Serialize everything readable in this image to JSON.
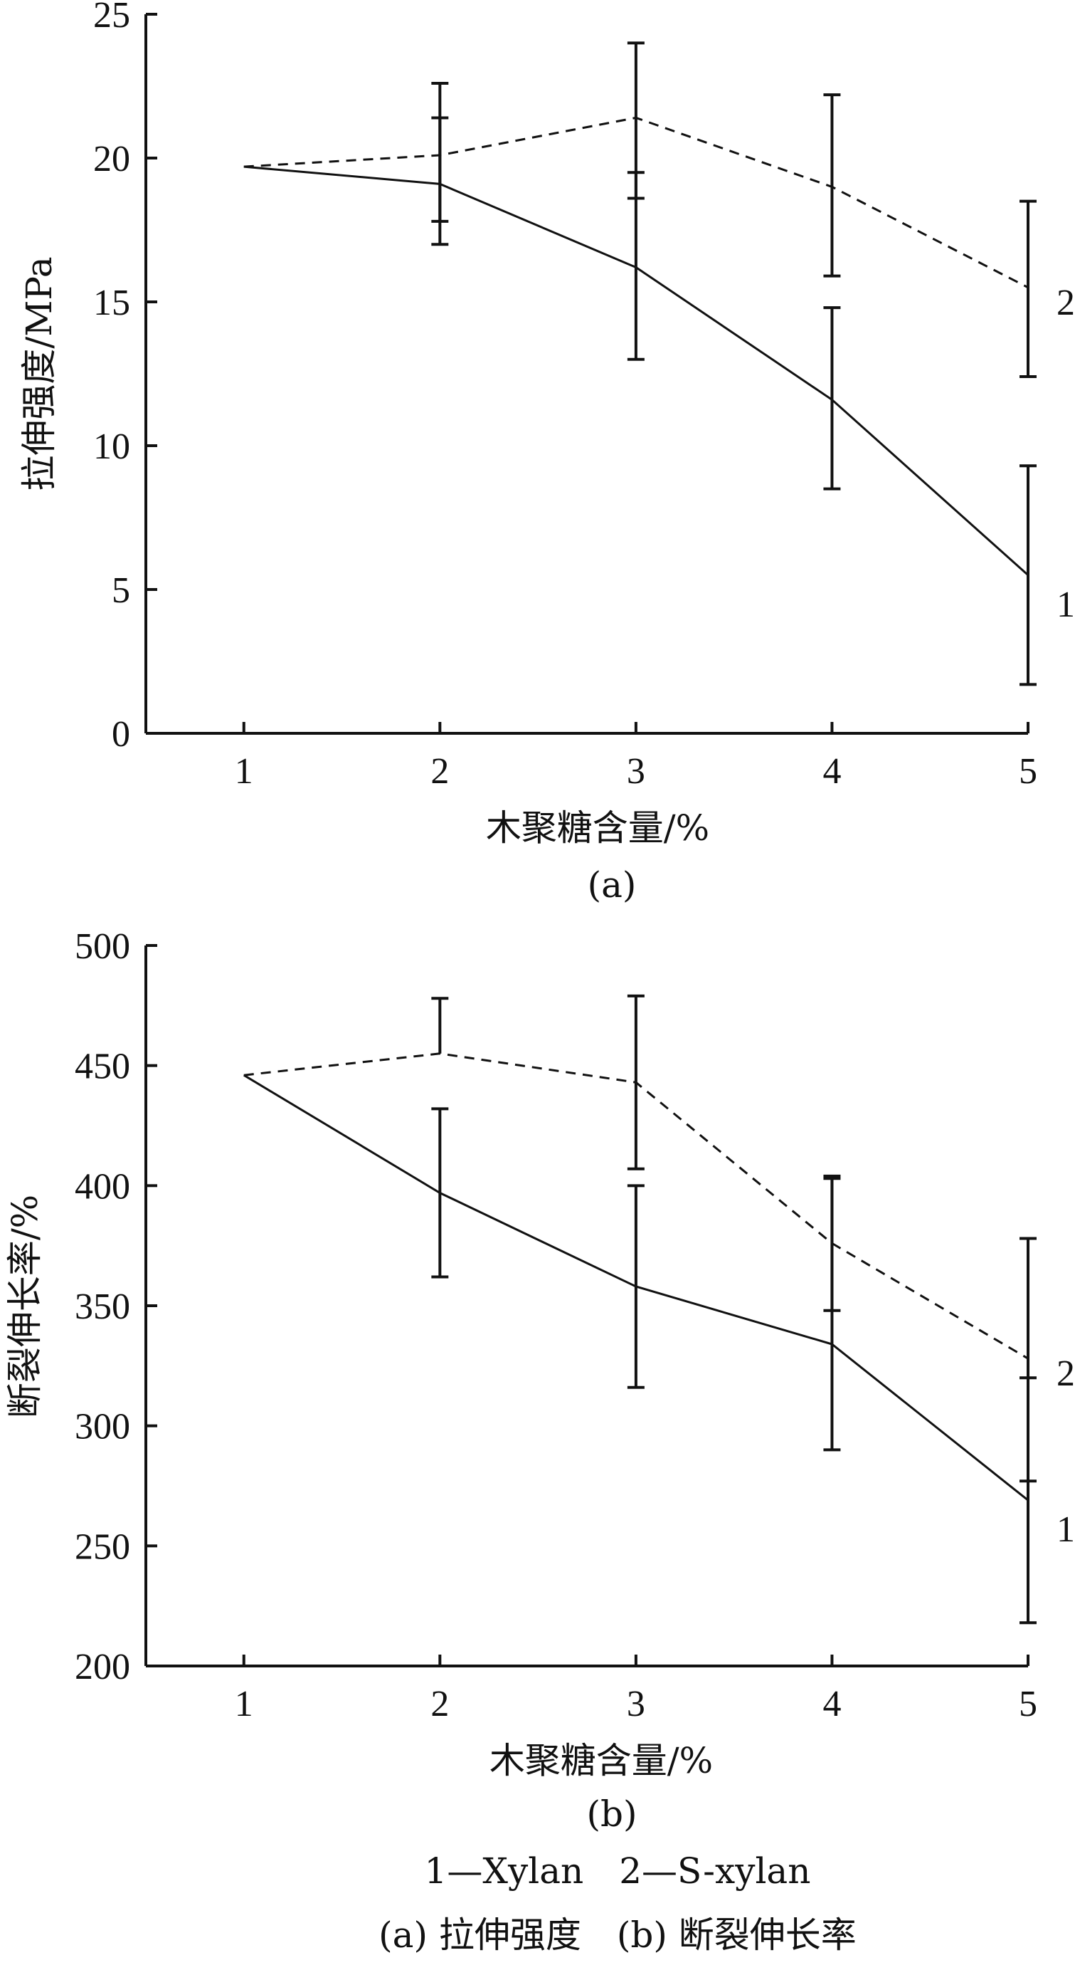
{
  "chart_data": [
    {
      "type": "line",
      "panel_label": "(a)",
      "xlabel": "木聚糖含量/%",
      "ylabel": "拉伸强度/MPa",
      "x": [
        1,
        2,
        3,
        4,
        5
      ],
      "xlim": [
        0.5,
        5
      ],
      "ylim": [
        0,
        25
      ],
      "xticks": [
        "1",
        "2",
        "3",
        "4",
        "5"
      ],
      "yticks": [
        "0",
        "5",
        "10",
        "15",
        "20",
        "25"
      ],
      "grid": false,
      "series": [
        {
          "name": "1",
          "dash": false,
          "values": [
            19.7,
            19.1,
            16.2,
            11.6,
            5.5
          ],
          "err_low": [
            null,
            17.8,
            13.0,
            8.5,
            1.7
          ],
          "err_high": [
            null,
            21.4,
            19.5,
            14.8,
            9.3
          ]
        },
        {
          "name": "2",
          "dash": true,
          "values": [
            19.7,
            20.1,
            21.4,
            19.0,
            15.5
          ],
          "err_low": [
            null,
            17.0,
            18.6,
            15.9,
            12.4
          ],
          "err_high": [
            null,
            22.6,
            24.0,
            22.2,
            18.5
          ]
        }
      ]
    },
    {
      "type": "line",
      "panel_label": "(b)",
      "xlabel": "木聚糖含量/%",
      "ylabel": "断裂伸长率/%",
      "x": [
        1,
        2,
        3,
        4,
        5
      ],
      "xlim": [
        0.5,
        5
      ],
      "ylim": [
        200,
        500
      ],
      "xticks": [
        "1",
        "2",
        "3",
        "4",
        "5"
      ],
      "yticks": [
        "200",
        "250",
        "300",
        "350",
        "400",
        "450",
        "500"
      ],
      "grid": false,
      "series": [
        {
          "name": "1",
          "dash": false,
          "values": [
            446,
            397,
            358,
            334,
            269
          ],
          "err_low": [
            null,
            362,
            316,
            290,
            218
          ],
          "err_high": [
            null,
            432,
            400,
            404,
            320
          ]
        },
        {
          "name": "2",
          "dash": true,
          "values": [
            446,
            455,
            443,
            376,
            328
          ],
          "err_low": [
            null,
            null,
            407,
            348,
            277
          ],
          "err_high": [
            null,
            478,
            479,
            403,
            378
          ]
        }
      ]
    }
  ],
  "legend_text": "1—Xylan　2—S-xylan",
  "caption_text": "(a) 拉伸强度　(b) 断裂伸长率"
}
